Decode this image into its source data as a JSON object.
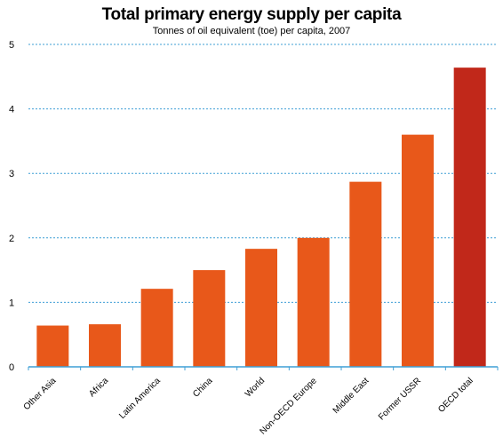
{
  "chart_data": {
    "type": "bar",
    "title": "Total primary energy supply per capita",
    "subtitle": "Tonnes of oil equivalent (toe) per capita, 2007",
    "xlabel": "",
    "ylabel": "",
    "ylim": [
      0,
      5
    ],
    "yticks": [
      "0",
      "1",
      "2",
      "3",
      "4",
      "5"
    ],
    "grid": true,
    "categories": [
      "Other Asia",
      "Africa",
      "Latin America",
      "China",
      "World",
      "Non-OECD Europe",
      "Middle East",
      "Former USSR",
      "OECD total"
    ],
    "values": [
      0.64,
      0.66,
      1.21,
      1.5,
      1.83,
      2.0,
      2.87,
      3.6,
      4.64
    ],
    "colors": [
      "#e8581a",
      "#e8581a",
      "#e8581a",
      "#e8581a",
      "#e8581a",
      "#e8581a",
      "#e8581a",
      "#e8581a",
      "#c1281a"
    ]
  },
  "style": {
    "grid_color": "#3f9fd6",
    "axis_color": "#3f9fd6"
  }
}
